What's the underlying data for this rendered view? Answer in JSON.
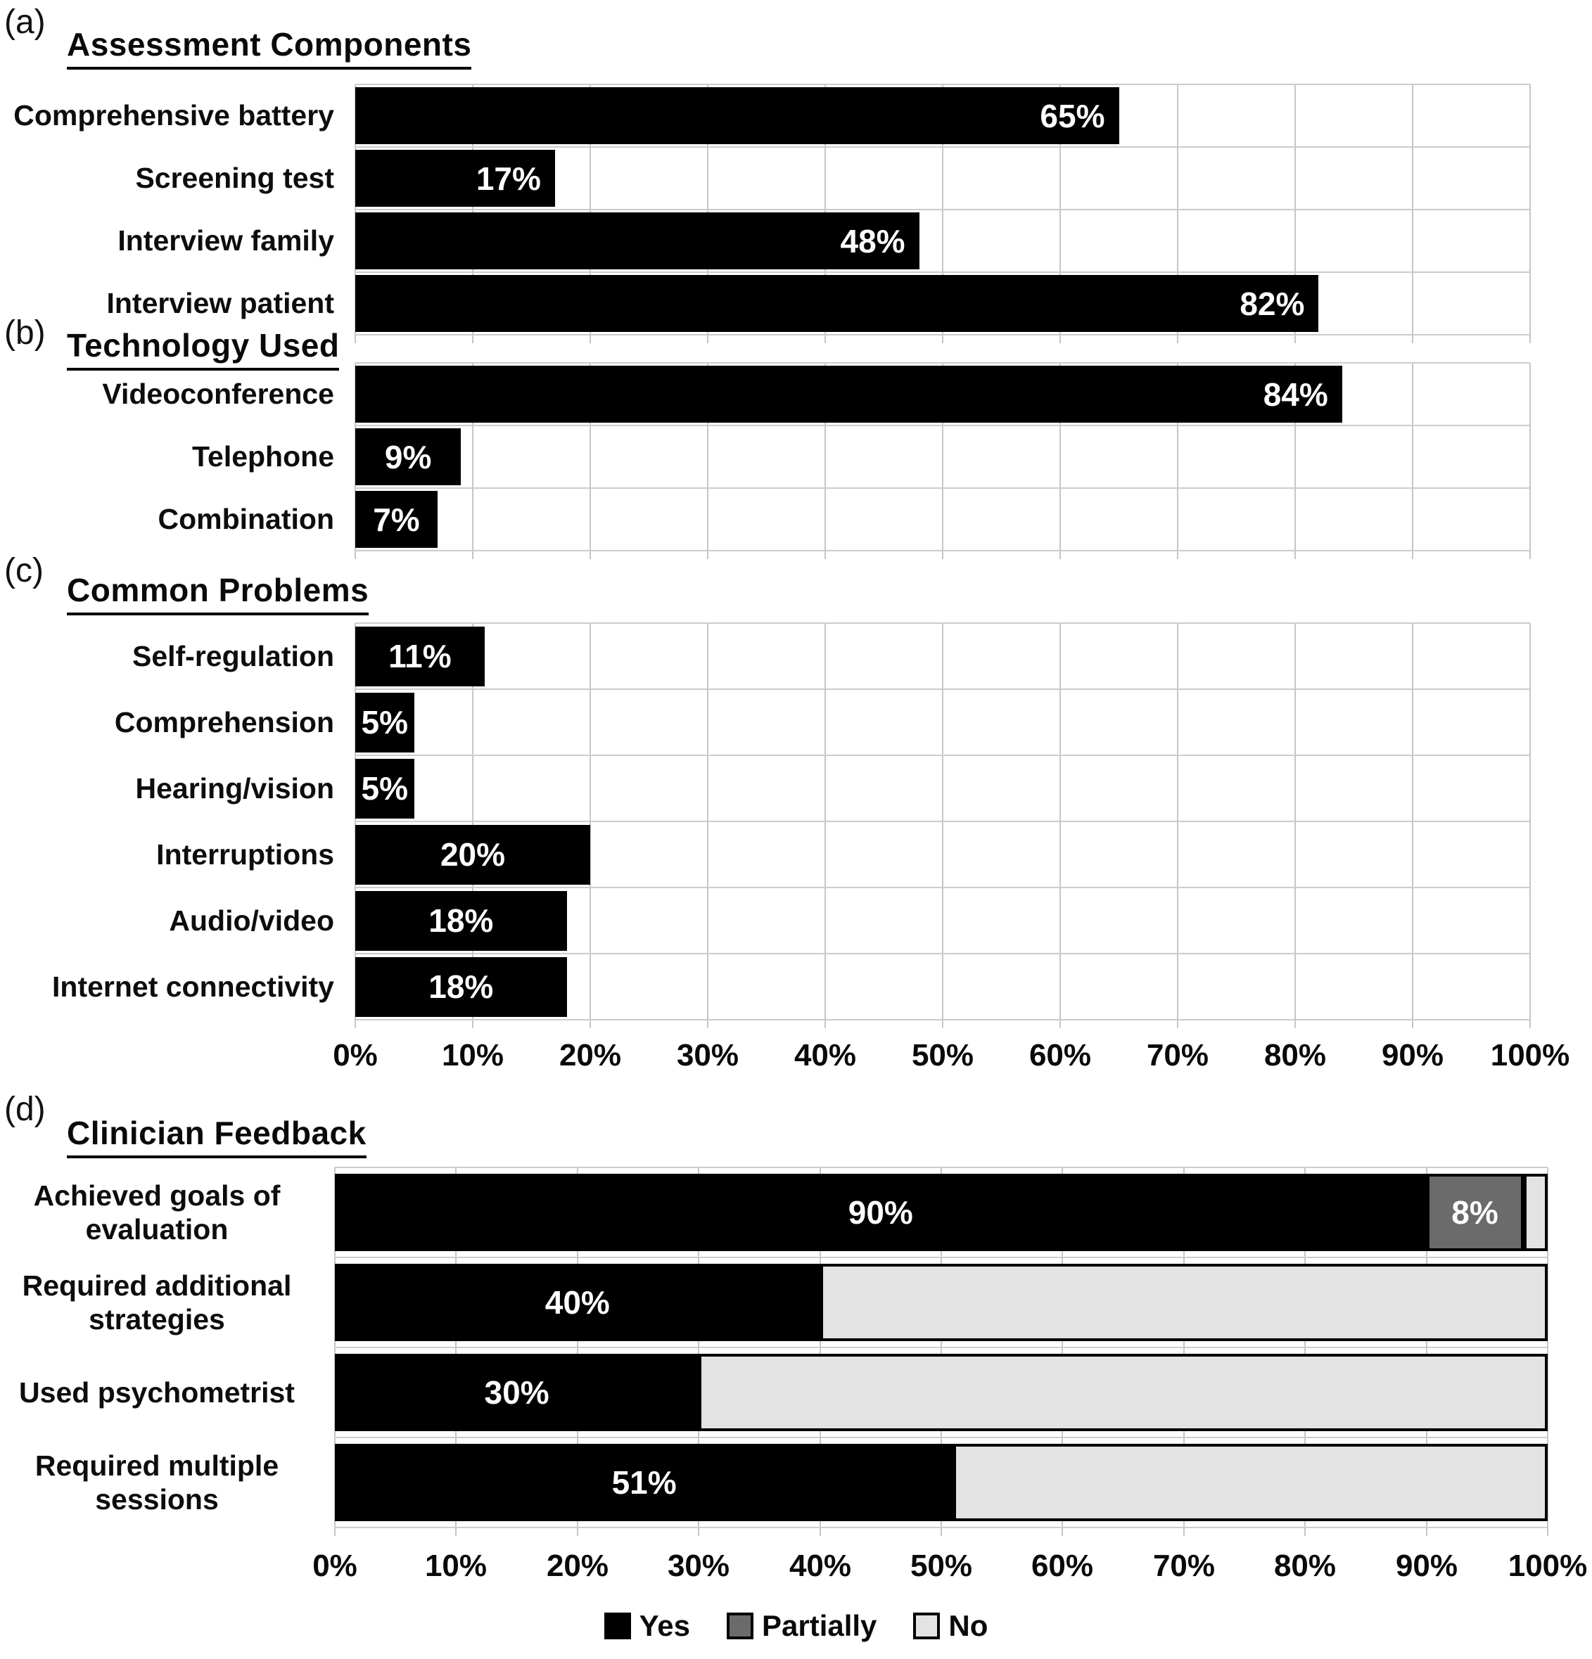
{
  "chart_data": [
    {
      "panel": "a",
      "marker": "(a)",
      "title": "Assessment Components",
      "type": "bar",
      "categories": [
        "Comprehensive battery",
        "Screening test",
        "Interview family",
        "Interview patient"
      ],
      "values": [
        65,
        17,
        48,
        82
      ],
      "value_labels": [
        "65%",
        "17%",
        "48%",
        "82%"
      ],
      "label_pos": [
        "end",
        "end",
        "end",
        "end"
      ],
      "bar_color": "#000000",
      "xlim": [
        0,
        100
      ],
      "grid": true
    },
    {
      "panel": "b",
      "marker": "(b)",
      "title": "Technology Used",
      "type": "bar",
      "categories": [
        "Videoconference",
        "Telephone",
        "Combination"
      ],
      "values": [
        84,
        9,
        7
      ],
      "value_labels": [
        "84%",
        "9%",
        "7%"
      ],
      "label_pos": [
        "end",
        "center",
        "center"
      ],
      "bar_color": "#000000",
      "xlim": [
        0,
        100
      ],
      "grid": true
    },
    {
      "panel": "c",
      "marker": "(c)",
      "title": "Common Problems",
      "type": "bar",
      "categories": [
        "Self-regulation",
        "Comprehension",
        "Hearing/vision",
        "Interruptions",
        "Audio/video",
        "Internet connectivity"
      ],
      "values": [
        11,
        5,
        5,
        20,
        18,
        18
      ],
      "value_labels": [
        "11%",
        "5%",
        "5%",
        "20%",
        "18%",
        "18%"
      ],
      "label_pos": [
        "center",
        "center",
        "center",
        "center",
        "center",
        "center"
      ],
      "bar_color": "#000000",
      "xlim": [
        0,
        100
      ],
      "grid": true
    },
    {
      "panel": "d",
      "marker": "(d)",
      "title": "Clinician Feedback",
      "type": "stacked_bar",
      "categories": [
        "Achieved goals of evaluation",
        "Required additional strategies",
        "Used psychometrist",
        "Required multiple sessions"
      ],
      "series": [
        {
          "name": "Yes",
          "color": "#000000",
          "values": [
            90,
            40,
            30,
            51
          ]
        },
        {
          "name": "Partially",
          "color": "#6b6b6b",
          "values": [
            8,
            0,
            0,
            0
          ]
        },
        {
          "name": "No",
          "color": "#e3e3e3",
          "values": [
            2,
            60,
            70,
            49
          ]
        }
      ],
      "segment_labels": [
        [
          "90%",
          "8%",
          ""
        ],
        [
          "40%",
          "",
          ""
        ],
        [
          "30%",
          "",
          ""
        ],
        [
          "51%",
          "",
          ""
        ]
      ],
      "xlim": [
        0,
        100
      ],
      "grid": true,
      "legend_position": "bottom"
    }
  ],
  "axis": {
    "ticks": [
      "0%",
      "10%",
      "20%",
      "30%",
      "40%",
      "50%",
      "60%",
      "70%",
      "80%",
      "90%",
      "100%"
    ]
  },
  "legend": {
    "items": [
      {
        "label": "Yes",
        "color": "#000000"
      },
      {
        "label": "Partially",
        "color": "#6b6b6b"
      },
      {
        "label": "No",
        "color": "#e3e3e3"
      }
    ]
  },
  "colors": {
    "bar": "#000000",
    "partially": "#6b6b6b",
    "no": "#e3e3e3",
    "gridline": "#c6c6c6",
    "value_label_text": "#ffffff"
  }
}
